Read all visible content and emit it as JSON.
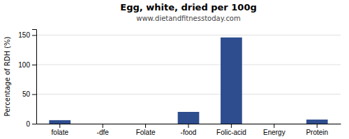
{
  "chart_data": {
    "type": "bar",
    "title": "Egg, white, dried per 100g",
    "subtitle": "www.dietandfitnesstoday.com",
    "categories": [
      "folate",
      "-dfe",
      "Folate",
      "-food",
      "Folic-acid",
      "Energy",
      "Protein"
    ],
    "values": [
      6,
      0,
      0,
      20,
      146,
      0,
      7
    ],
    "color": "#2e4d8e",
    "ylabel": "Percentage of RDH (%)",
    "ylim": [
      0,
      160
    ],
    "yticks": [
      0,
      50,
      100,
      150
    ],
    "grid": true
  }
}
